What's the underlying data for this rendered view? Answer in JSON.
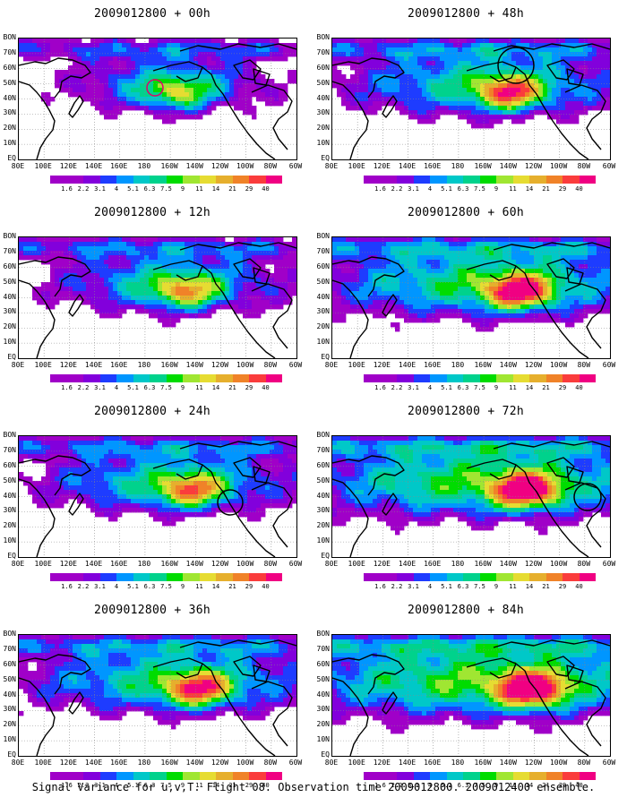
{
  "chart_data": {
    "type": "heatmap",
    "caption": "Signal Variance for u,v,T. Flight 08. Observation time 2009012800. 2009012400 ensemble.",
    "x_ticks": [
      "80E",
      "100E",
      "120E",
      "140E",
      "160E",
      "180",
      "160W",
      "140W",
      "120W",
      "100W",
      "80W",
      "60W"
    ],
    "y_ticks": [
      "80N",
      "70N",
      "60N",
      "50N",
      "40N",
      "30N",
      "20N",
      "10N",
      "EQ"
    ],
    "y_ticks_display": [
      "BON",
      "70N",
      "60N",
      "50N",
      "40N",
      "30N",
      "20N",
      "10N",
      "EQ"
    ],
    "colorbar": {
      "levels": [
        "1.6",
        "2.2",
        "3.1",
        "4",
        "5.1",
        "6.3",
        "7.5",
        "9",
        "11",
        "14",
        "21",
        "29",
        "40"
      ],
      "colors": [
        "#a000c8",
        "#8200dc",
        "#1e3cff",
        "#0096ff",
        "#00c8c8",
        "#00d28c",
        "#00dc00",
        "#a0e632",
        "#e6dc32",
        "#e6af2d",
        "#f08228",
        "#fa3c3c",
        "#f00082"
      ]
    },
    "panels": [
      {
        "title": "2009012800 + 00h",
        "coverage": 0.28,
        "intensity": 0.35,
        "circle": "small-red"
      },
      {
        "title": "2009012800 + 48h",
        "coverage": 0.55,
        "intensity": 0.55,
        "circle": "upper-center"
      },
      {
        "title": "2009012800 + 12h",
        "coverage": 0.4,
        "intensity": 0.45,
        "circle": ""
      },
      {
        "title": "2009012800 + 60h",
        "coverage": 0.7,
        "intensity": 0.65,
        "circle": ""
      },
      {
        "title": "2009012800 + 24h",
        "coverage": 0.48,
        "intensity": 0.5,
        "circle": "center-right"
      },
      {
        "title": "2009012800 + 72h",
        "coverage": 0.8,
        "intensity": 0.7,
        "circle": "right"
      },
      {
        "title": "2009012800 + 36h",
        "coverage": 0.58,
        "intensity": 0.58,
        "circle": ""
      },
      {
        "title": "2009012800 + 84h",
        "coverage": 0.88,
        "intensity": 0.75,
        "circle": ""
      }
    ]
  }
}
